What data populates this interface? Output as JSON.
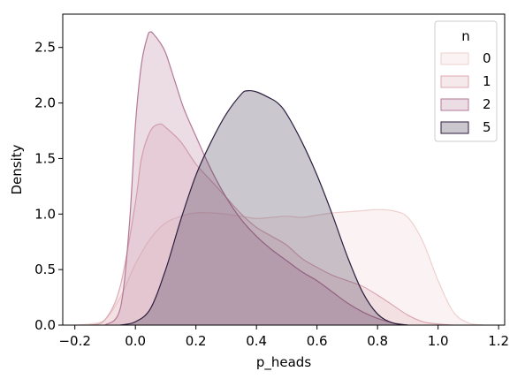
{
  "chart_data": {
    "type": "area",
    "xlabel": "p_heads",
    "ylabel": "Density",
    "xlim": [
      -0.24,
      1.22
    ],
    "ylim": [
      0,
      2.8
    ],
    "xticks": [
      -0.2,
      0.0,
      0.2,
      0.4,
      0.6,
      0.8,
      1.0,
      1.2
    ],
    "xtick_labels": [
      "−0.2",
      "0.0",
      "0.2",
      "0.4",
      "0.6",
      "0.8",
      "1.0",
      "1.2"
    ],
    "yticks": [
      0.0,
      0.5,
      1.0,
      1.5,
      2.0,
      2.5
    ],
    "ytick_labels": [
      "0.0",
      "0.5",
      "1.0",
      "1.5",
      "2.0",
      "2.5"
    ],
    "grid": false,
    "legend": {
      "title": "n",
      "placement": "top-right"
    },
    "series": [
      {
        "name": "0",
        "color": "#eed1cf",
        "x": [
          -0.2,
          -0.15,
          -0.1,
          -0.05,
          0.0,
          0.05,
          0.1,
          0.15,
          0.2,
          0.25,
          0.3,
          0.35,
          0.4,
          0.45,
          0.5,
          0.55,
          0.6,
          0.65,
          0.7,
          0.75,
          0.8,
          0.85,
          0.9,
          0.95,
          1.0,
          1.05,
          1.1,
          1.15
        ],
        "y": [
          0.0,
          0.01,
          0.05,
          0.25,
          0.55,
          0.78,
          0.92,
          0.98,
          1.01,
          1.01,
          1.0,
          0.98,
          0.96,
          0.97,
          0.98,
          0.97,
          0.99,
          1.01,
          1.02,
          1.03,
          1.04,
          1.03,
          0.97,
          0.75,
          0.4,
          0.12,
          0.02,
          0.0
        ]
      },
      {
        "name": "1",
        "color": "#dca8b2",
        "x": [
          -0.15,
          -0.1,
          -0.05,
          0.0,
          0.02,
          0.05,
          0.08,
          0.1,
          0.15,
          0.2,
          0.25,
          0.3,
          0.35,
          0.4,
          0.45,
          0.5,
          0.55,
          0.6,
          0.65,
          0.7,
          0.75,
          0.8,
          0.85,
          0.9,
          0.95,
          1.0,
          1.05
        ],
        "y": [
          0.0,
          0.05,
          0.35,
          1.1,
          1.5,
          1.75,
          1.81,
          1.78,
          1.65,
          1.45,
          1.3,
          1.15,
          1.0,
          0.88,
          0.8,
          0.72,
          0.6,
          0.52,
          0.45,
          0.4,
          0.35,
          0.27,
          0.18,
          0.09,
          0.03,
          0.01,
          0.0
        ]
      },
      {
        "name": "2",
        "color": "#b57796",
        "x": [
          -0.1,
          -0.05,
          -0.02,
          0.0,
          0.02,
          0.04,
          0.05,
          0.06,
          0.08,
          0.1,
          0.13,
          0.16,
          0.2,
          0.25,
          0.3,
          0.35,
          0.4,
          0.45,
          0.5,
          0.55,
          0.6,
          0.65,
          0.7,
          0.75,
          0.8,
          0.85,
          0.9
        ],
        "y": [
          0.0,
          0.15,
          0.9,
          1.8,
          2.35,
          2.6,
          2.64,
          2.62,
          2.55,
          2.45,
          2.2,
          1.95,
          1.7,
          1.4,
          1.15,
          0.95,
          0.8,
          0.68,
          0.58,
          0.48,
          0.4,
          0.3,
          0.2,
          0.12,
          0.06,
          0.02,
          0.0
        ]
      },
      {
        "name": "5",
        "color": "#2d1e3e",
        "x": [
          -0.05,
          0.0,
          0.05,
          0.1,
          0.15,
          0.2,
          0.25,
          0.3,
          0.35,
          0.37,
          0.4,
          0.44,
          0.47,
          0.5,
          0.55,
          0.6,
          0.65,
          0.7,
          0.75,
          0.8,
          0.85,
          0.9
        ],
        "y": [
          0.0,
          0.03,
          0.15,
          0.5,
          0.95,
          1.35,
          1.65,
          1.9,
          2.08,
          2.11,
          2.1,
          2.05,
          2.0,
          1.9,
          1.65,
          1.35,
          1.0,
          0.62,
          0.3,
          0.1,
          0.02,
          0.0
        ]
      }
    ]
  }
}
